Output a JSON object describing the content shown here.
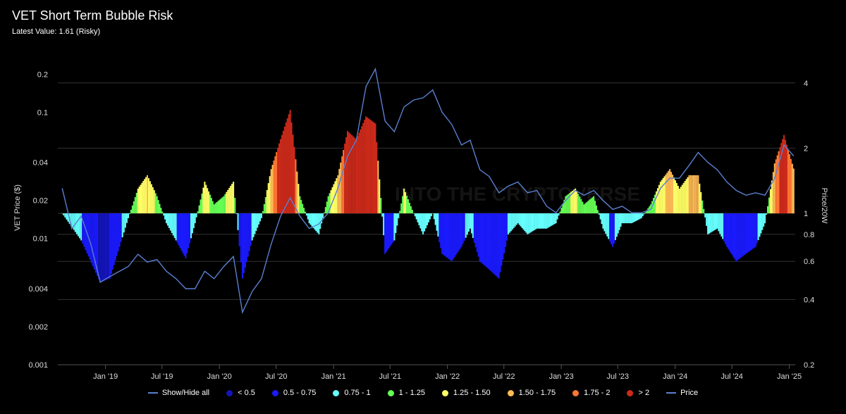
{
  "header": {
    "title": "VET Short Term Bubble Risk",
    "subtitle": "Latest Value: 1.61 (Risky)"
  },
  "watermark": "INTO THE CRYPTOVERSE",
  "legend": [
    {
      "label": "Show/Hide all",
      "color": "#5a7fd0",
      "kind": "line"
    },
    {
      "label": "< 0.5",
      "color": "#1414b8",
      "kind": "dot"
    },
    {
      "label": "0.5 - 0.75",
      "color": "#1a1aff",
      "kind": "dot"
    },
    {
      "label": "0.75 - 1",
      "color": "#66ffff",
      "kind": "dot"
    },
    {
      "label": "1 - 1.25",
      "color": "#66ff55",
      "kind": "dot"
    },
    {
      "label": "1.25 - 1.50",
      "color": "#ffff66",
      "kind": "dot"
    },
    {
      "label": "1.50 - 1.75",
      "color": "#ffbb55",
      "kind": "dot"
    },
    {
      "label": "1.75 - 2",
      "color": "#ff7733",
      "kind": "dot"
    },
    {
      "label": "> 2",
      "color": "#cc2a1a",
      "kind": "dot"
    },
    {
      "label": "Price",
      "color": "#5a7fd0",
      "kind": "line"
    }
  ],
  "chart_data": {
    "type": "bar",
    "title": "VET Short Term Bubble Risk",
    "subtitle": "Latest Value: 1.61 (Risky)",
    "ylabel_left": "VET Price ($)",
    "ylabel_right": "Price/20W",
    "y_left_scale": "log",
    "y_right_scale": "log",
    "y_left_range": [
      0.001,
      0.25
    ],
    "y_right_range": [
      0.2,
      5
    ],
    "y_left_ticks": [
      "0.2",
      "0.1",
      "0.04",
      "0.02",
      "0.01",
      "0.004",
      "0.002",
      "0.001"
    ],
    "y_right_ticks": [
      "4",
      "2",
      "1",
      "0.8",
      "0.6",
      "0.4",
      "0.2"
    ],
    "x_ticks": [
      "Jan '19",
      "Jul '19",
      "Jan '20",
      "Jul '20",
      "Jan '21",
      "Jul '21",
      "Jan '22",
      "Jul '22",
      "Jan '23",
      "Jul '23",
      "Jan '24",
      "Jul '24",
      "Jan '25"
    ],
    "x_range": [
      "2018-08-01",
      "2025-01-20"
    ],
    "grid": true,
    "legend_position": "bottom",
    "series": [
      {
        "name": "Price/20W",
        "type": "bar",
        "points": [
          [
            "2018-08",
            "1.0"
          ],
          [
            "2018-10",
            "0.75"
          ],
          [
            "2018-12",
            "0.48"
          ],
          [
            "2019-01",
            "0.5"
          ],
          [
            "2019-02",
            "0.7"
          ],
          [
            "2019-03",
            "0.95"
          ],
          [
            "2019-04",
            "1.3"
          ],
          [
            "2019-05",
            "1.5"
          ],
          [
            "2019-06",
            "1.2"
          ],
          [
            "2019-07",
            "0.9"
          ],
          [
            "2019-08",
            "0.75"
          ],
          [
            "2019-09",
            "0.62"
          ],
          [
            "2019-10",
            "0.9"
          ],
          [
            "2019-11",
            "1.4"
          ],
          [
            "2019-12",
            "1.1"
          ],
          [
            "2020-01",
            "1.2"
          ],
          [
            "2020-02",
            "1.4"
          ],
          [
            "2020-03",
            "0.5"
          ],
          [
            "2020-04",
            "0.75"
          ],
          [
            "2020-05",
            "0.95"
          ],
          [
            "2020-06",
            "1.6"
          ],
          [
            "2020-07",
            "2.2"
          ],
          [
            "2020-08",
            "3.0"
          ],
          [
            "2020-09",
            "1.2"
          ],
          [
            "2020-10",
            "0.9"
          ],
          [
            "2020-11",
            "0.8"
          ],
          [
            "2020-12",
            "1.2"
          ],
          [
            "2021-01",
            "1.5"
          ],
          [
            "2021-02",
            "2.4"
          ],
          [
            "2021-03",
            "2.2"
          ],
          [
            "2021-04",
            "2.8"
          ],
          [
            "2021-05",
            "2.6"
          ],
          [
            "2021-06",
            "0.65"
          ],
          [
            "2021-07",
            "0.75"
          ],
          [
            "2021-08",
            "1.3"
          ],
          [
            "2021-09",
            "1.0"
          ],
          [
            "2021-10",
            "0.8"
          ],
          [
            "2021-11",
            "1.0"
          ],
          [
            "2021-12",
            "0.65"
          ],
          [
            "2022-01",
            "0.6"
          ],
          [
            "2022-02",
            "0.7"
          ],
          [
            "2022-03",
            "0.85"
          ],
          [
            "2022-04",
            "0.6"
          ],
          [
            "2022-05",
            "0.55"
          ],
          [
            "2022-06",
            "0.5"
          ],
          [
            "2022-07",
            "0.8"
          ],
          [
            "2022-08",
            "0.9"
          ],
          [
            "2022-09",
            "0.8"
          ],
          [
            "2022-10",
            "0.85"
          ],
          [
            "2022-11",
            "0.85"
          ],
          [
            "2022-12",
            "0.9"
          ],
          [
            "2023-01",
            "1.2"
          ],
          [
            "2023-02",
            "1.3"
          ],
          [
            "2023-03",
            "1.1"
          ],
          [
            "2023-04",
            "1.2"
          ],
          [
            "2023-05",
            "0.85"
          ],
          [
            "2023-06",
            "0.7"
          ],
          [
            "2023-07",
            "0.9"
          ],
          [
            "2023-08",
            "0.9"
          ],
          [
            "2023-09",
            "0.95"
          ],
          [
            "2023-10",
            "1.1"
          ],
          [
            "2023-11",
            "1.4"
          ],
          [
            "2023-12",
            "1.6"
          ],
          [
            "2024-01",
            "1.3"
          ],
          [
            "2024-02",
            "1.5"
          ],
          [
            "2024-03",
            "1.5"
          ],
          [
            "2024-04",
            "0.8"
          ],
          [
            "2024-05",
            "0.85"
          ],
          [
            "2024-06",
            "0.7"
          ],
          [
            "2024-07",
            "0.6"
          ],
          [
            "2024-08",
            "0.65"
          ],
          [
            "2024-09",
            "0.7"
          ],
          [
            "2024-10",
            "0.9"
          ],
          [
            "2024-11",
            "1.7"
          ],
          [
            "2024-12",
            "2.3"
          ],
          [
            "2025-01",
            "1.61"
          ]
        ]
      },
      {
        "name": "Price",
        "type": "line",
        "points": [
          [
            "2018-08",
            "0.025"
          ],
          [
            "2018-09",
            "0.012"
          ],
          [
            "2018-10",
            "0.015"
          ],
          [
            "2018-11",
            "0.009"
          ],
          [
            "2018-12",
            "0.0045"
          ],
          [
            "2019-01",
            "0.005"
          ],
          [
            "2019-02",
            "0.0055"
          ],
          [
            "2019-03",
            "0.006"
          ],
          [
            "2019-04",
            "0.0075"
          ],
          [
            "2019-05",
            "0.0065"
          ],
          [
            "2019-06",
            "0.0068"
          ],
          [
            "2019-07",
            "0.0055"
          ],
          [
            "2019-08",
            "0.0048"
          ],
          [
            "2019-09",
            "0.004"
          ],
          [
            "2019-10",
            "0.004"
          ],
          [
            "2019-11",
            "0.0055"
          ],
          [
            "2019-12",
            "0.0048"
          ],
          [
            "2020-01",
            "0.006"
          ],
          [
            "2020-02",
            "0.0072"
          ],
          [
            "2020-03",
            "0.0026"
          ],
          [
            "2020-04",
            "0.0038"
          ],
          [
            "2020-05",
            "0.0048"
          ],
          [
            "2020-06",
            "0.009"
          ],
          [
            "2020-07",
            "0.015"
          ],
          [
            "2020-08",
            "0.021"
          ],
          [
            "2020-09",
            "0.015"
          ],
          [
            "2020-10",
            "0.012"
          ],
          [
            "2020-11",
            "0.013"
          ],
          [
            "2020-12",
            "0.016"
          ],
          [
            "2021-01",
            "0.025"
          ],
          [
            "2021-02",
            "0.045"
          ],
          [
            "2021-03",
            "0.06"
          ],
          [
            "2021-04",
            "0.16"
          ],
          [
            "2021-05",
            "0.22"
          ],
          [
            "2021-06",
            "0.085"
          ],
          [
            "2021-07",
            "0.07"
          ],
          [
            "2021-08",
            "0.11"
          ],
          [
            "2021-09",
            "0.125"
          ],
          [
            "2021-10",
            "0.13"
          ],
          [
            "2021-11",
            "0.15"
          ],
          [
            "2021-12",
            "0.1"
          ],
          [
            "2022-01",
            "0.08"
          ],
          [
            "2022-02",
            "0.055"
          ],
          [
            "2022-03",
            "0.06"
          ],
          [
            "2022-04",
            "0.035"
          ],
          [
            "2022-05",
            "0.031"
          ],
          [
            "2022-06",
            "0.023"
          ],
          [
            "2022-07",
            "0.026"
          ],
          [
            "2022-08",
            "0.028"
          ],
          [
            "2022-09",
            "0.023"
          ],
          [
            "2022-10",
            "0.024"
          ],
          [
            "2022-11",
            "0.018"
          ],
          [
            "2022-12",
            "0.016"
          ],
          [
            "2023-01",
            "0.02"
          ],
          [
            "2023-02",
            "0.024"
          ],
          [
            "2023-03",
            "0.022"
          ],
          [
            "2023-04",
            "0.024"
          ],
          [
            "2023-05",
            "0.02"
          ],
          [
            "2023-06",
            "0.017"
          ],
          [
            "2023-07",
            "0.018"
          ],
          [
            "2023-08",
            "0.016"
          ],
          [
            "2023-09",
            "0.016"
          ],
          [
            "2023-10",
            "0.017"
          ],
          [
            "2023-11",
            "0.025"
          ],
          [
            "2023-12",
            "0.03"
          ],
          [
            "2024-01",
            "0.03"
          ],
          [
            "2024-02",
            "0.038"
          ],
          [
            "2024-03",
            "0.048"
          ],
          [
            "2024-04",
            "0.04"
          ],
          [
            "2024-05",
            "0.035"
          ],
          [
            "2024-06",
            "0.028"
          ],
          [
            "2024-07",
            "0.024"
          ],
          [
            "2024-08",
            "0.022"
          ],
          [
            "2024-09",
            "0.023"
          ],
          [
            "2024-10",
            "0.022"
          ],
          [
            "2024-11",
            "0.03"
          ],
          [
            "2024-12",
            "0.055"
          ],
          [
            "2025-01",
            "0.045"
          ]
        ]
      }
    ]
  }
}
